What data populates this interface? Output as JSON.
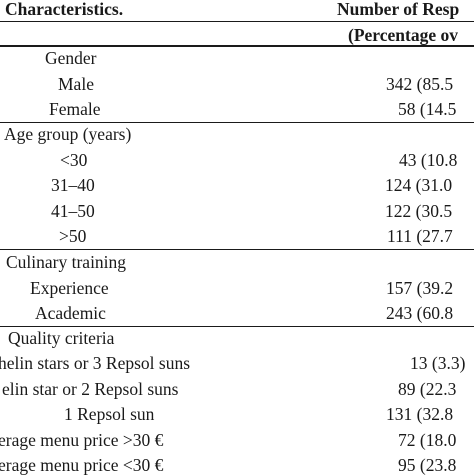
{
  "header": {
    "col1": "Characteristics.",
    "col2_line1": "Number of Resp",
    "col2_line2": "(Percentage ov"
  },
  "sections": [
    {
      "title": "Gender",
      "rows": [
        {
          "label": "Male",
          "value": "342 (85.5"
        },
        {
          "label": "Female",
          "value": "58 (14.5"
        }
      ]
    },
    {
      "title": "Age group (years)",
      "rows": [
        {
          "label": "<30",
          "value": "43 (10.8"
        },
        {
          "label": "31–40",
          "value": "124 (31.0"
        },
        {
          "label": "41–50",
          "value": "122 (30.5"
        },
        {
          "label": ">50",
          "value": "111 (27.7"
        }
      ]
    },
    {
      "title": "Culinary training",
      "rows": [
        {
          "label": "Experience",
          "value": "157 (39.2"
        },
        {
          "label": "Academic",
          "value": "243 (60.8"
        }
      ]
    },
    {
      "title": "Quality criteria",
      "rows": [
        {
          "label": "helin stars or 3 Repsol suns",
          "value": "13 (3.3)"
        },
        {
          "label": "elin star or 2 Repsol suns",
          "value": "89 (22.3"
        },
        {
          "label": "1 Repsol sun",
          "value": "131 (32.8"
        },
        {
          "label": "erage menu price >30 €",
          "value": "72 (18.0"
        },
        {
          "label": "erage menu price <30 €",
          "value": "95 (23.8"
        }
      ]
    }
  ]
}
